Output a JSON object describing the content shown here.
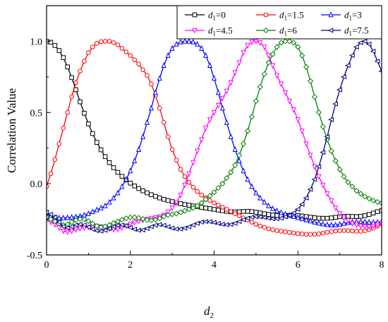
{
  "chart_data": {
    "type": "line",
    "xlabel": "d",
    "xlabel_sub": "2",
    "ylabel": "Correlation Value",
    "xlim": [
      0,
      8
    ],
    "ylim": [
      -0.5,
      1.25
    ],
    "x_ticks": [
      0,
      2,
      4,
      6,
      8
    ],
    "x_tick_labels": [
      "0",
      "2",
      "4",
      "6",
      "8"
    ],
    "y_ticks": [
      -0.5,
      0.0,
      0.5,
      1.0
    ],
    "y_tick_labels": [
      "-0.5",
      "0.0",
      "0.5",
      "1.0"
    ],
    "grid": false,
    "legend_position": "top-right",
    "x_step": 0.1,
    "series": [
      {
        "name": "d1=0",
        "label_main": "d",
        "label_sub": "1",
        "label_rest": "=0",
        "color": "#000000",
        "marker": "square",
        "values": [
          1.0,
          0.993,
          0.97,
          0.935,
          0.885,
          0.82,
          0.745,
          0.66,
          0.575,
          0.495,
          0.42,
          0.352,
          0.29,
          0.238,
          0.19,
          0.148,
          0.112,
          0.08,
          0.052,
          0.026,
          0.004,
          -0.016,
          -0.034,
          -0.05,
          -0.064,
          -0.077,
          -0.089,
          -0.1,
          -0.11,
          -0.118,
          -0.126,
          -0.134,
          -0.14,
          -0.146,
          -0.151,
          -0.156,
          -0.161,
          -0.166,
          -0.171,
          -0.175,
          -0.18,
          -0.185,
          -0.19,
          -0.194,
          -0.197,
          -0.198,
          -0.197,
          -0.195,
          -0.194,
          -0.196,
          -0.2,
          -0.205,
          -0.211,
          -0.216,
          -0.22,
          -0.223,
          -0.224,
          -0.224,
          -0.223,
          -0.222,
          -0.224,
          -0.227,
          -0.231,
          -0.235,
          -0.239,
          -0.242,
          -0.243,
          -0.243,
          -0.24,
          -0.236,
          -0.232,
          -0.23,
          -0.229,
          -0.23,
          -0.231,
          -0.229,
          -0.224,
          -0.216,
          -0.206,
          -0.196,
          -0.188
        ]
      },
      {
        "name": "d1=1.5",
        "label_main": "d",
        "label_sub": "1",
        "label_rest": "=1.5",
        "color": "#ff0000",
        "marker": "circle",
        "values": [
          -0.02,
          0.07,
          0.17,
          0.28,
          0.39,
          0.5,
          0.61,
          0.71,
          0.79,
          0.86,
          0.92,
          0.96,
          0.985,
          0.997,
          1.0,
          1.0,
          0.99,
          0.975,
          0.95,
          0.925,
          0.9,
          0.87,
          0.84,
          0.8,
          0.76,
          0.7,
          0.62,
          0.53,
          0.43,
          0.33,
          0.24,
          0.165,
          0.1,
          0.05,
          0.01,
          -0.025,
          -0.055,
          -0.08,
          -0.1,
          -0.118,
          -0.135,
          -0.15,
          -0.165,
          -0.18,
          -0.195,
          -0.21,
          -0.225,
          -0.24,
          -0.255,
          -0.27,
          -0.285,
          -0.297,
          -0.307,
          -0.316,
          -0.323,
          -0.329,
          -0.334,
          -0.338,
          -0.342,
          -0.346,
          -0.35,
          -0.353,
          -0.355,
          -0.356,
          -0.355,
          -0.352,
          -0.347,
          -0.341,
          -0.336,
          -0.332,
          -0.33,
          -0.329,
          -0.33,
          -0.332,
          -0.334,
          -0.334,
          -0.33,
          -0.322,
          -0.312,
          -0.298,
          -0.283
        ]
      },
      {
        "name": "d1=3",
        "label_main": "d",
        "label_sub": "1",
        "label_rest": "=3",
        "color": "#0000ff",
        "marker": "triangle-up",
        "values": [
          -0.22,
          -0.228,
          -0.236,
          -0.24,
          -0.24,
          -0.238,
          -0.235,
          -0.232,
          -0.228,
          -0.22,
          -0.21,
          -0.197,
          -0.183,
          -0.17,
          -0.155,
          -0.13,
          -0.1,
          -0.065,
          -0.02,
          0.03,
          0.09,
          0.16,
          0.24,
          0.33,
          0.43,
          0.53,
          0.64,
          0.74,
          0.83,
          0.9,
          0.95,
          0.98,
          0.995,
          1.0,
          1.0,
          0.995,
          0.98,
          0.95,
          0.9,
          0.83,
          0.74,
          0.64,
          0.53,
          0.43,
          0.33,
          0.24,
          0.16,
          0.09,
          0.03,
          -0.02,
          -0.065,
          -0.1,
          -0.13,
          -0.155,
          -0.175,
          -0.19,
          -0.203,
          -0.213,
          -0.222,
          -0.23,
          -0.238,
          -0.246,
          -0.254,
          -0.262,
          -0.27,
          -0.277,
          -0.283,
          -0.288,
          -0.29,
          -0.289,
          -0.285,
          -0.279,
          -0.273,
          -0.269,
          -0.267,
          -0.267,
          -0.268,
          -0.27,
          -0.271,
          -0.27,
          -0.267
        ]
      },
      {
        "name": "d1=4.5",
        "label_main": "d",
        "label_sub": "1",
        "label_rest": "=4.5",
        "color": "#ff00ff",
        "marker": "triangle-down",
        "values": [
          -0.255,
          -0.27,
          -0.287,
          -0.31,
          -0.332,
          -0.34,
          -0.333,
          -0.322,
          -0.315,
          -0.31,
          -0.305,
          -0.302,
          -0.3,
          -0.302,
          -0.31,
          -0.318,
          -0.322,
          -0.32,
          -0.31,
          -0.296,
          -0.283,
          -0.272,
          -0.263,
          -0.256,
          -0.25,
          -0.245,
          -0.239,
          -0.232,
          -0.22,
          -0.2,
          -0.17,
          -0.13,
          -0.08,
          -0.01,
          0.07,
          0.15,
          0.23,
          0.31,
          0.39,
          0.45,
          0.5,
          0.55,
          0.6,
          0.65,
          0.71,
          0.78,
          0.85,
          0.92,
          0.97,
          0.995,
          1.0,
          0.99,
          0.96,
          0.9,
          0.83,
          0.76,
          0.7,
          0.64,
          0.58,
          0.52,
          0.45,
          0.37,
          0.28,
          0.2,
          0.12,
          0.05,
          -0.01,
          -0.07,
          -0.12,
          -0.17,
          -0.21,
          -0.24,
          -0.26,
          -0.28,
          -0.29,
          -0.298,
          -0.302,
          -0.302,
          -0.298,
          -0.29,
          -0.28
        ]
      },
      {
        "name": "d1=6",
        "label_main": "d",
        "label_sub": "1",
        "label_rest": "=6",
        "color": "#008000",
        "marker": "diamond",
        "values": [
          -0.235,
          -0.25,
          -0.265,
          -0.28,
          -0.29,
          -0.285,
          -0.27,
          -0.255,
          -0.248,
          -0.25,
          -0.262,
          -0.28,
          -0.297,
          -0.305,
          -0.3,
          -0.29,
          -0.277,
          -0.265,
          -0.253,
          -0.243,
          -0.237,
          -0.236,
          -0.24,
          -0.247,
          -0.255,
          -0.258,
          -0.253,
          -0.243,
          -0.23,
          -0.22,
          -0.215,
          -0.21,
          -0.2,
          -0.19,
          -0.18,
          -0.17,
          -0.155,
          -0.135,
          -0.11,
          -0.085,
          -0.06,
          -0.03,
          0.0,
          0.04,
          0.08,
          0.13,
          0.2,
          0.28,
          0.37,
          0.47,
          0.58,
          0.68,
          0.77,
          0.85,
          0.91,
          0.96,
          0.99,
          1.0,
          1.0,
          0.99,
          0.96,
          0.9,
          0.82,
          0.72,
          0.61,
          0.5,
          0.4,
          0.31,
          0.23,
          0.16,
          0.1,
          0.05,
          0.01,
          -0.02,
          -0.05,
          -0.07,
          -0.09,
          -0.105,
          -0.118,
          -0.128,
          -0.135
        ]
      },
      {
        "name": "d1=7.5",
        "label_main": "d",
        "label_sub": "1",
        "label_rest": "=7.5",
        "color": "#000080",
        "marker": "triangle-left",
        "values": [
          -0.2,
          -0.215,
          -0.235,
          -0.27,
          -0.3,
          -0.31,
          -0.302,
          -0.29,
          -0.285,
          -0.29,
          -0.305,
          -0.32,
          -0.33,
          -0.333,
          -0.327,
          -0.315,
          -0.302,
          -0.292,
          -0.29,
          -0.296,
          -0.308,
          -0.32,
          -0.327,
          -0.325,
          -0.315,
          -0.302,
          -0.291,
          -0.287,
          -0.292,
          -0.302,
          -0.312,
          -0.318,
          -0.318,
          -0.312,
          -0.302,
          -0.29,
          -0.278,
          -0.27,
          -0.266,
          -0.267,
          -0.272,
          -0.279,
          -0.285,
          -0.288,
          -0.286,
          -0.278,
          -0.266,
          -0.253,
          -0.242,
          -0.235,
          -0.232,
          -0.233,
          -0.237,
          -0.242,
          -0.246,
          -0.246,
          -0.242,
          -0.233,
          -0.222,
          -0.205,
          -0.18,
          -0.145,
          -0.1,
          -0.04,
          0.03,
          0.12,
          0.22,
          0.33,
          0.45,
          0.56,
          0.66,
          0.75,
          0.83,
          0.9,
          0.96,
          0.99,
          1.0,
          0.98,
          0.93,
          0.86,
          0.79
        ]
      }
    ]
  }
}
